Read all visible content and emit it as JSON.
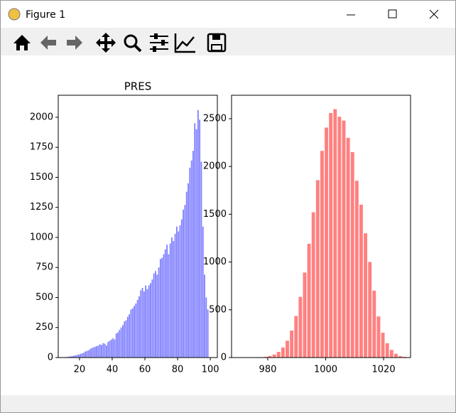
{
  "window": {
    "title": "Figure 1"
  },
  "chart_data": [
    {
      "type": "histogram",
      "title": "PRES",
      "color": "#8080ff",
      "rwidth": 0.8,
      "bins": [
        9,
        10,
        11,
        12,
        13,
        14,
        15,
        16,
        17,
        18,
        19,
        20,
        21,
        22,
        23,
        24,
        25,
        26,
        27,
        28,
        29,
        30,
        31,
        32,
        33,
        34,
        35,
        36,
        37,
        38,
        39,
        40,
        41,
        42,
        43,
        44,
        45,
        46,
        47,
        48,
        49,
        50,
        51,
        52,
        53,
        54,
        55,
        56,
        57,
        58,
        59,
        60,
        61,
        62,
        63,
        64,
        65,
        66,
        67,
        68,
        69,
        70,
        71,
        72,
        73,
        74,
        75,
        76,
        77,
        78,
        79,
        80,
        81,
        82,
        83,
        84,
        85,
        86,
        87,
        88,
        89,
        90,
        91,
        92,
        93,
        94,
        95,
        96,
        97,
        98,
        99
      ],
      "values": [
        2,
        3,
        4,
        5,
        8,
        10,
        12,
        15,
        18,
        22,
        25,
        30,
        35,
        40,
        50,
        55,
        60,
        70,
        80,
        85,
        90,
        95,
        100,
        110,
        105,
        120,
        115,
        100,
        130,
        140,
        150,
        160,
        150,
        200,
        210,
        230,
        250,
        270,
        300,
        310,
        340,
        360,
        400,
        410,
        430,
        450,
        480,
        510,
        560,
        580,
        550,
        600,
        570,
        600,
        620,
        650,
        700,
        720,
        690,
        750,
        820,
        830,
        860,
        900,
        940,
        860,
        950,
        1000,
        970,
        1030,
        1090,
        1050,
        1100,
        1150,
        1230,
        1270,
        1380,
        1450,
        1580,
        1640,
        1720,
        1950,
        1900,
        2060,
        1980,
        1630,
        1090,
        690,
        500,
        400
      ],
      "xlim": [
        7,
        104.3
      ],
      "xticks": [
        20,
        40,
        60,
        80,
        100
      ],
      "ylim": [
        0,
        2183
      ],
      "yticks": [
        0,
        250,
        500,
        750,
        1000,
        1250,
        1500,
        1750,
        2000
      ]
    },
    {
      "type": "histogram",
      "color": "#ff8080",
      "rwidth": 0.8,
      "bins": [
        974,
        975.5,
        977,
        978.5,
        980,
        981.5,
        983,
        984.5,
        986,
        987.5,
        989,
        990.5,
        992,
        993.5,
        995,
        996.5,
        998,
        999.5,
        1001,
        1002.5,
        1004,
        1005.5,
        1007,
        1008.5,
        1010,
        1011.5,
        1013,
        1014.5,
        1016,
        1017.5,
        1019,
        1020.5,
        1022,
        1023.5,
        1025,
        1026.5,
        1028
      ],
      "values": [
        1,
        2,
        4,
        8,
        17,
        32,
        59,
        105,
        176,
        282,
        434,
        635,
        890,
        1191,
        1520,
        1856,
        2163,
        2407,
        2559,
        2600,
        2520,
        2480,
        2300,
        2150,
        1850,
        1600,
        1300,
        1000,
        700,
        430,
        260,
        150,
        80,
        40,
        15,
        8
      ],
      "xlim": [
        967.5,
        1029.3
      ],
      "xticks": [
        980,
        1000,
        1020
      ],
      "ylim": [
        0,
        2745
      ],
      "yticks": [
        0,
        500,
        1000,
        1500,
        2000,
        2500
      ]
    }
  ]
}
